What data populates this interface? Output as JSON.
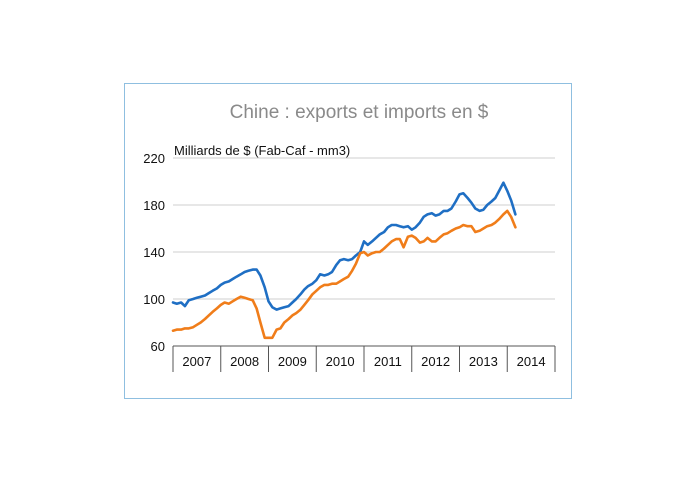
{
  "chart_data": {
    "type": "line",
    "title": "Chine : exports et imports en $",
    "ylabel": "Milliards de $ (Fab-Caf - mm3)",
    "xlabel": "",
    "ylim": [
      60,
      220
    ],
    "yticks": [
      60,
      100,
      140,
      180,
      220
    ],
    "xlim": [
      2007,
      2015
    ],
    "categories": [
      "2007",
      "2008",
      "2009",
      "2010",
      "2011",
      "2012",
      "2013",
      "2014"
    ],
    "grid": "horizontal",
    "legend": "none",
    "colors": {
      "exports": "#1f6fc4",
      "imports": "#f07d1a",
      "grid": "#cfcfcf",
      "axis": "#555555",
      "frame": "#8fbfe0"
    },
    "series": [
      {
        "color": "#1f6fc4",
        "x": [
          2007.0,
          2007.08,
          2007.17,
          2007.25,
          2007.33,
          2007.42,
          2007.5,
          2007.58,
          2007.67,
          2007.75,
          2007.83,
          2007.92,
          2008.0,
          2008.08,
          2008.17,
          2008.25,
          2008.33,
          2008.42,
          2008.5,
          2008.58,
          2008.67,
          2008.75,
          2008.83,
          2008.92,
          2009.0,
          2009.08,
          2009.17,
          2009.25,
          2009.33,
          2009.42,
          2009.5,
          2009.58,
          2009.67,
          2009.75,
          2009.83,
          2009.92,
          2010.0,
          2010.08,
          2010.17,
          2010.25,
          2010.33,
          2010.42,
          2010.5,
          2010.58,
          2010.67,
          2010.75,
          2010.83,
          2010.92,
          2011.0,
          2011.08,
          2011.17,
          2011.25,
          2011.33,
          2011.42,
          2011.5,
          2011.58,
          2011.67,
          2011.75,
          2011.83,
          2011.92,
          2012.0,
          2012.08,
          2012.17,
          2012.25,
          2012.33,
          2012.42,
          2012.5,
          2012.58,
          2012.67,
          2012.75,
          2012.83,
          2012.92,
          2013.0,
          2013.08,
          2013.17,
          2013.25,
          2013.33,
          2013.42,
          2013.5,
          2013.58,
          2013.67,
          2013.75,
          2013.83,
          2013.92,
          2014.0,
          2014.08,
          2014.17
        ],
        "values": [
          97,
          96,
          97,
          94,
          99,
          100,
          101,
          102,
          103,
          105,
          107,
          109,
          112,
          114,
          115,
          117,
          119,
          121,
          123,
          124,
          125,
          125,
          120,
          110,
          98,
          93,
          91,
          92,
          93,
          94,
          97,
          100,
          104,
          108,
          111,
          113,
          116,
          121,
          120,
          121,
          123,
          129,
          133,
          134,
          133,
          134,
          137,
          140,
          149,
          146,
          149,
          152,
          155,
          157,
          161,
          163,
          163,
          162,
          161,
          162,
          159,
          161,
          165,
          170,
          172,
          173,
          171,
          172,
          175,
          175,
          177,
          183,
          189,
          190,
          186,
          182,
          177,
          175,
          176,
          180,
          183,
          186,
          192,
          199,
          192,
          184,
          172
        ]
      },
      {
        "color": "#f07d1a",
        "x": [
          2007.0,
          2007.08,
          2007.17,
          2007.25,
          2007.33,
          2007.42,
          2007.5,
          2007.58,
          2007.67,
          2007.75,
          2007.83,
          2007.92,
          2008.0,
          2008.08,
          2008.17,
          2008.25,
          2008.33,
          2008.42,
          2008.5,
          2008.58,
          2008.67,
          2008.75,
          2008.83,
          2008.92,
          2009.0,
          2009.08,
          2009.17,
          2009.25,
          2009.33,
          2009.42,
          2009.5,
          2009.58,
          2009.67,
          2009.75,
          2009.83,
          2009.92,
          2010.0,
          2010.08,
          2010.17,
          2010.25,
          2010.33,
          2010.42,
          2010.5,
          2010.58,
          2010.67,
          2010.75,
          2010.83,
          2010.92,
          2011.0,
          2011.08,
          2011.17,
          2011.25,
          2011.33,
          2011.42,
          2011.5,
          2011.58,
          2011.67,
          2011.75,
          2011.83,
          2011.92,
          2012.0,
          2012.08,
          2012.17,
          2012.25,
          2012.33,
          2012.42,
          2012.5,
          2012.58,
          2012.67,
          2012.75,
          2012.83,
          2012.92,
          2013.0,
          2013.08,
          2013.17,
          2013.25,
          2013.33,
          2013.42,
          2013.5,
          2013.58,
          2013.67,
          2013.75,
          2013.83,
          2013.92,
          2014.0,
          2014.08,
          2014.17
        ],
        "values": [
          73,
          74,
          74,
          75,
          75,
          76,
          78,
          80,
          83,
          86,
          89,
          92,
          95,
          97,
          96,
          98,
          100,
          102,
          101,
          100,
          99,
          92,
          80,
          67,
          67,
          67,
          74,
          75,
          80,
          83,
          86,
          88,
          91,
          95,
          99,
          104,
          107,
          110,
          112,
          112,
          113,
          113,
          115,
          117,
          119,
          124,
          130,
          139,
          140,
          137,
          139,
          140,
          140,
          143,
          146,
          149,
          151,
          151,
          144,
          153,
          154,
          152,
          148,
          149,
          152,
          149,
          149,
          152,
          155,
          156,
          158,
          160,
          161,
          163,
          162,
          162,
          157,
          158,
          160,
          162,
          163,
          165,
          168,
          172,
          175,
          170,
          161
        ]
      }
    ]
  }
}
